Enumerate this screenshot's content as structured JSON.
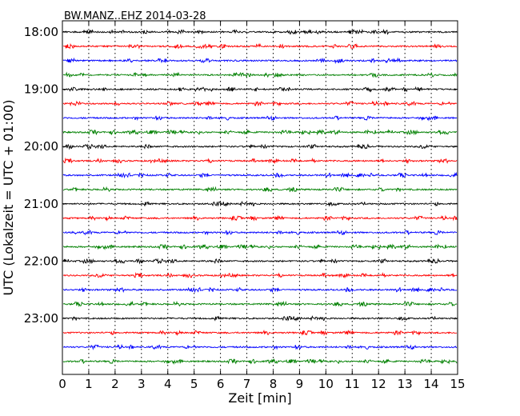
{
  "chart_data": {
    "type": "line",
    "title": "BW.MANZ..EHZ 2014-03-28",
    "xlabel": "Zeit  [min]",
    "ylabel": "UTC (Lokalzeit = UTC + 01:00)",
    "xlim": [
      0,
      15
    ],
    "x_ticks": [
      0,
      1,
      2,
      3,
      4,
      5,
      6,
      7,
      8,
      9,
      10,
      11,
      12,
      13,
      14,
      15
    ],
    "y_tick_labels": [
      "18:00",
      "19:00",
      "20:00",
      "21:00",
      "22:00",
      "23:00"
    ],
    "grid": true,
    "trace_colors": [
      "#000000",
      "#ff0000",
      "#0000ff",
      "#008000"
    ],
    "series": [
      {
        "start": "18:00"
      },
      {
        "start": "18:15"
      },
      {
        "start": "18:30"
      },
      {
        "start": "18:45"
      },
      {
        "start": "19:00"
      },
      {
        "start": "19:15"
      },
      {
        "start": "19:30"
      },
      {
        "start": "19:45"
      },
      {
        "start": "20:00"
      },
      {
        "start": "20:15"
      },
      {
        "start": "20:30"
      },
      {
        "start": "20:45"
      },
      {
        "start": "21:00"
      },
      {
        "start": "21:15"
      },
      {
        "start": "21:30"
      },
      {
        "start": "21:45"
      },
      {
        "start": "22:00"
      },
      {
        "start": "22:15"
      },
      {
        "start": "22:30"
      },
      {
        "start": "22:45"
      },
      {
        "start": "23:00"
      },
      {
        "start": "23:15"
      },
      {
        "start": "23:30"
      },
      {
        "start": "23:45"
      }
    ]
  }
}
